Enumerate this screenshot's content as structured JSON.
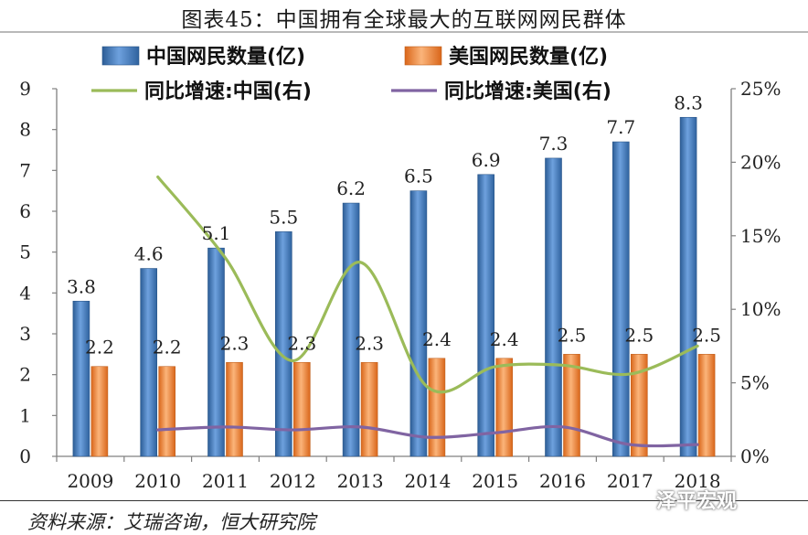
{
  "header": {
    "title": "图表45：中国拥有全球最大的互联网网民群体"
  },
  "source": {
    "text": "资料来源：艾瑞咨询，恒大研究院"
  },
  "watermark": {
    "text": "泽平宏观"
  },
  "colors": {
    "china_bar": "#4f81bd",
    "us_bar": "#f79646",
    "china_growth": "#9bbb59",
    "us_growth": "#8064a2"
  },
  "chart_data": {
    "type": "bar",
    "categories": [
      "2009",
      "2010",
      "2011",
      "2012",
      "2013",
      "2014",
      "2015",
      "2016",
      "2017",
      "2018"
    ],
    "ylim": [
      0,
      9
    ],
    "y2lim": [
      0,
      0.25
    ],
    "yticks": [
      "0",
      "1",
      "2",
      "3",
      "4",
      "5",
      "6",
      "7",
      "8",
      "9"
    ],
    "y2ticks": [
      "0%",
      "5%",
      "10%",
      "15%",
      "20%",
      "25%"
    ],
    "legend_position": "top",
    "series": [
      {
        "name": "中国网民数量(亿)",
        "kind": "bar",
        "axis": "left",
        "values": [
          3.8,
          4.6,
          5.1,
          5.5,
          6.2,
          6.5,
          6.9,
          7.3,
          7.7,
          8.3
        ],
        "labels": [
          "3.8",
          "4.6",
          "5.1",
          "5.5",
          "6.2",
          "6.5",
          "6.9",
          "7.3",
          "7.7",
          "8.3"
        ]
      },
      {
        "name": "美国网民数量(亿)",
        "kind": "bar",
        "axis": "left",
        "values": [
          2.2,
          2.2,
          2.3,
          2.3,
          2.3,
          2.4,
          2.4,
          2.5,
          2.5,
          2.5
        ],
        "labels": [
          "2.2",
          "2.2",
          "2.3",
          "2.3",
          "2.3",
          "2.4",
          "2.4",
          "2.5",
          "2.5",
          "2.5"
        ]
      },
      {
        "name": "同比增速:中国(右)",
        "kind": "line",
        "axis": "right",
        "values": [
          null,
          0.19,
          0.135,
          0.065,
          0.132,
          0.047,
          0.061,
          0.062,
          0.056,
          0.075
        ]
      },
      {
        "name": "同比增速:美国(右)",
        "kind": "line",
        "axis": "right",
        "values": [
          null,
          0.018,
          0.02,
          0.018,
          0.02,
          0.013,
          0.016,
          0.02,
          0.008,
          0.008
        ]
      }
    ]
  }
}
